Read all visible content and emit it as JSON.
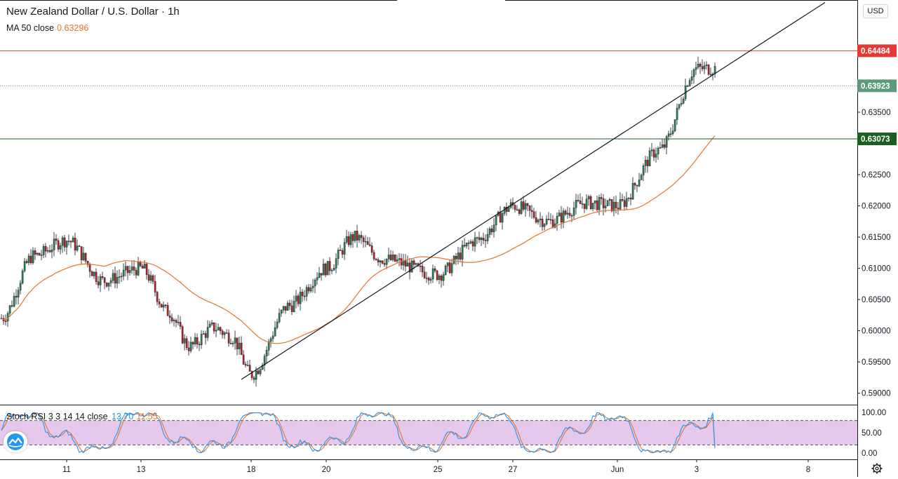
{
  "legend": {
    "title": "New Zealand Dollar / U.S. Dollar · 1h",
    "ma_label": "MA 50 close",
    "ma_value": "0.63296"
  },
  "currency": "USD",
  "oscillator": {
    "label": "Stoch RSI 3 3 14 14 close",
    "k_value": "13.70",
    "d_value": "11.55"
  },
  "colors": {
    "up": "#26a69a",
    "down": "#ef5350",
    "candle_up_body": "#2e7d4f",
    "candle_down_body": "#b22222",
    "ma": "#e8742a",
    "resistance": "#e53935",
    "support": "#1b5e20",
    "current_price": "#5b9a7a",
    "stoch_k": "#2196f3",
    "stoch_d": "#e8742a",
    "stoch_band": "#e1bee7"
  },
  "chart_data": [
    {
      "type": "candlestick",
      "symbol": "NZDUSD",
      "timeframe": "1h",
      "x_ticks": [
        "11",
        "13",
        "18",
        "20",
        "25",
        "27",
        "Jun",
        "3",
        "8"
      ],
      "y_ticks": [
        "0.59000",
        "0.59500",
        "0.60000",
        "0.60500",
        "0.61000",
        "0.61500",
        "0.62000",
        "0.62500",
        "0.63500"
      ],
      "ylim": [
        0.5885,
        0.6505
      ],
      "horizontal_levels": [
        {
          "value": 0.64484,
          "label": "0.64484",
          "style": "resistance"
        },
        {
          "value": 0.63923,
          "label": "0.63923",
          "style": "current"
        },
        {
          "value": 0.63073,
          "label": "0.63073",
          "style": "support"
        }
      ],
      "trendline": {
        "from": {
          "x": "18",
          "y": 0.5922
        },
        "to": {
          "x": "Jun",
          "y": 0.6311
        }
      },
      "close_path": [
        {
          "x": "9",
          "y": 0.602
        },
        {
          "x": "10",
          "y": 0.612
        },
        {
          "x": "11",
          "y": 0.6145
        },
        {
          "x": "12",
          "y": 0.608
        },
        {
          "x": "13",
          "y": 0.61
        },
        {
          "x": "14",
          "y": 0.603
        },
        {
          "x": "15",
          "y": 0.5975
        },
        {
          "x": "16",
          "y": 0.6005
        },
        {
          "x": "17",
          "y": 0.599
        },
        {
          "x": "18",
          "y": 0.593
        },
        {
          "x": "19",
          "y": 0.604
        },
        {
          "x": "20",
          "y": 0.61
        },
        {
          "x": "21",
          "y": 0.615
        },
        {
          "x": "22",
          "y": 0.6115
        },
        {
          "x": "25",
          "y": 0.609
        },
        {
          "x": "26",
          "y": 0.6145
        },
        {
          "x": "27",
          "y": 0.62
        },
        {
          "x": "28",
          "y": 0.6175
        },
        {
          "x": "29",
          "y": 0.6205
        },
        {
          "x": "Jun",
          "y": 0.62
        },
        {
          "x": "2",
          "y": 0.629
        },
        {
          "x": "3",
          "y": 0.642
        }
      ],
      "ma50_close_last": 0.63296
    },
    {
      "type": "line",
      "name": "Stoch RSI 3 3 14 14 close",
      "y_ticks": [
        "100.00",
        "50.00",
        "0.00"
      ],
      "ylim": [
        0,
        100
      ],
      "band": [
        20,
        80
      ],
      "series": [
        {
          "name": "K",
          "last": 13.7
        },
        {
          "name": "D",
          "last": 11.55
        }
      ]
    }
  ]
}
